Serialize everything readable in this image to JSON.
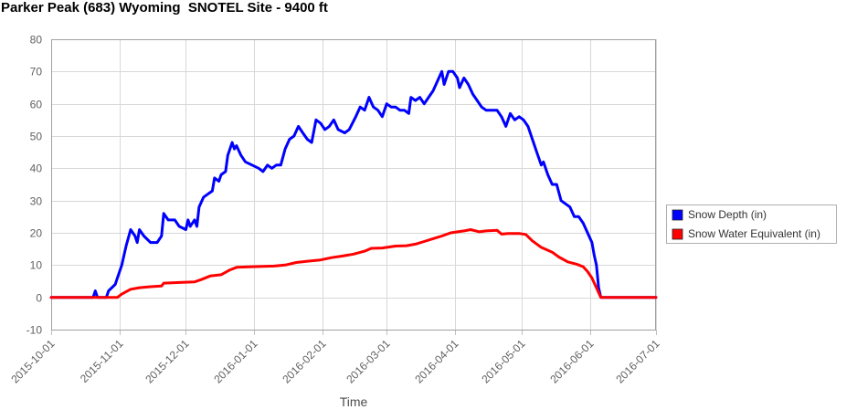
{
  "chart_data": {
    "type": "line",
    "title": "Parker Peak (683) Wyoming  SNOTEL Site - 9400 ft",
    "xlabel": "Time",
    "ylabel": "",
    "ylim": [
      -10,
      80
    ],
    "yticks": [
      -10,
      0,
      10,
      20,
      30,
      40,
      50,
      60,
      70,
      80
    ],
    "xlim": [
      "2015-10-01",
      "2016-07-01"
    ],
    "xticks": [
      "2015-10-01",
      "2015-11-01",
      "2015-12-01",
      "2016-01-01",
      "2016-02-01",
      "2016-03-01",
      "2016-04-01",
      "2016-05-01",
      "2016-06-01",
      "2016-07-01"
    ],
    "grid": true,
    "legend_position": "right",
    "series": [
      {
        "name": "Snow Depth (in)",
        "color": "#0000ff",
        "points": [
          [
            "2015-10-01",
            0
          ],
          [
            "2015-10-20",
            0
          ],
          [
            "2015-10-21",
            2
          ],
          [
            "2015-10-22",
            0
          ],
          [
            "2015-10-26",
            0
          ],
          [
            "2015-10-27",
            2
          ],
          [
            "2015-10-30",
            4
          ],
          [
            "2015-11-02",
            10
          ],
          [
            "2015-11-04",
            16
          ],
          [
            "2015-11-06",
            21
          ],
          [
            "2015-11-08",
            19
          ],
          [
            "2015-11-09",
            17
          ],
          [
            "2015-11-10",
            21
          ],
          [
            "2015-11-12",
            19
          ],
          [
            "2015-11-15",
            17
          ],
          [
            "2015-11-18",
            17
          ],
          [
            "2015-11-20",
            19
          ],
          [
            "2015-11-21",
            26
          ],
          [
            "2015-11-23",
            24
          ],
          [
            "2015-11-26",
            24
          ],
          [
            "2015-11-28",
            22
          ],
          [
            "2015-12-01",
            21
          ],
          [
            "2015-12-02",
            24
          ],
          [
            "2015-12-03",
            22
          ],
          [
            "2015-12-05",
            24
          ],
          [
            "2015-12-06",
            22
          ],
          [
            "2015-12-07",
            28
          ],
          [
            "2015-12-09",
            31
          ],
          [
            "2015-12-11",
            32
          ],
          [
            "2015-12-13",
            33
          ],
          [
            "2015-12-14",
            37
          ],
          [
            "2015-12-16",
            36
          ],
          [
            "2015-12-17",
            38
          ],
          [
            "2015-12-19",
            39
          ],
          [
            "2015-12-20",
            44
          ],
          [
            "2015-12-22",
            48
          ],
          [
            "2015-12-23",
            46
          ],
          [
            "2015-12-24",
            47
          ],
          [
            "2015-12-26",
            44
          ],
          [
            "2015-12-28",
            42
          ],
          [
            "2015-12-31",
            41
          ],
          [
            "2016-01-03",
            40
          ],
          [
            "2016-01-05",
            39
          ],
          [
            "2016-01-07",
            41
          ],
          [
            "2016-01-09",
            40
          ],
          [
            "2016-01-11",
            41
          ],
          [
            "2016-01-13",
            41
          ],
          [
            "2016-01-15",
            46
          ],
          [
            "2016-01-17",
            49
          ],
          [
            "2016-01-19",
            50
          ],
          [
            "2016-01-21",
            53
          ],
          [
            "2016-01-23",
            51
          ],
          [
            "2016-01-25",
            49
          ],
          [
            "2016-01-27",
            48
          ],
          [
            "2016-01-29",
            55
          ],
          [
            "2016-01-31",
            54
          ],
          [
            "2016-02-02",
            52
          ],
          [
            "2016-02-04",
            53
          ],
          [
            "2016-02-06",
            55
          ],
          [
            "2016-02-08",
            52
          ],
          [
            "2016-02-11",
            51
          ],
          [
            "2016-02-13",
            52
          ],
          [
            "2016-02-16",
            56
          ],
          [
            "2016-02-18",
            59
          ],
          [
            "2016-02-20",
            58
          ],
          [
            "2016-02-22",
            62
          ],
          [
            "2016-02-24",
            59
          ],
          [
            "2016-02-26",
            58
          ],
          [
            "2016-02-28",
            56
          ],
          [
            "2016-03-01",
            60
          ],
          [
            "2016-03-03",
            59
          ],
          [
            "2016-03-05",
            59
          ],
          [
            "2016-03-07",
            58
          ],
          [
            "2016-03-09",
            58
          ],
          [
            "2016-03-11",
            57
          ],
          [
            "2016-03-12",
            62
          ],
          [
            "2016-03-14",
            61
          ],
          [
            "2016-03-16",
            62
          ],
          [
            "2016-03-18",
            60
          ],
          [
            "2016-03-20",
            62
          ],
          [
            "2016-03-22",
            64
          ],
          [
            "2016-03-24",
            67
          ],
          [
            "2016-03-26",
            70
          ],
          [
            "2016-03-27",
            66
          ],
          [
            "2016-03-29",
            70
          ],
          [
            "2016-03-31",
            70
          ],
          [
            "2016-04-02",
            68
          ],
          [
            "2016-04-03",
            65
          ],
          [
            "2016-04-05",
            68
          ],
          [
            "2016-04-07",
            66
          ],
          [
            "2016-04-09",
            63
          ],
          [
            "2016-04-11",
            61
          ],
          [
            "2016-04-13",
            59
          ],
          [
            "2016-04-15",
            58
          ],
          [
            "2016-04-17",
            58
          ],
          [
            "2016-04-20",
            58
          ],
          [
            "2016-04-22",
            56
          ],
          [
            "2016-04-24",
            53
          ],
          [
            "2016-04-26",
            57
          ],
          [
            "2016-04-28",
            55
          ],
          [
            "2016-04-30",
            56
          ],
          [
            "2016-05-02",
            55
          ],
          [
            "2016-05-04",
            53
          ],
          [
            "2016-05-06",
            49
          ],
          [
            "2016-05-08",
            45
          ],
          [
            "2016-05-10",
            41
          ],
          [
            "2016-05-11",
            42
          ],
          [
            "2016-05-13",
            38
          ],
          [
            "2016-05-15",
            35
          ],
          [
            "2016-05-17",
            35
          ],
          [
            "2016-05-19",
            30
          ],
          [
            "2016-05-21",
            29
          ],
          [
            "2016-05-23",
            28
          ],
          [
            "2016-05-25",
            25
          ],
          [
            "2016-05-27",
            25
          ],
          [
            "2016-05-29",
            23
          ],
          [
            "2016-05-31",
            20
          ],
          [
            "2016-06-02",
            17
          ],
          [
            "2016-06-03",
            13
          ],
          [
            "2016-06-04",
            10
          ],
          [
            "2016-06-05",
            3
          ],
          [
            "2016-06-06",
            0
          ],
          [
            "2016-07-01",
            0
          ]
        ]
      },
      {
        "name": "Snow Water Equivalent (in)",
        "color": "#ff0000",
        "points": [
          [
            "2015-10-01",
            0
          ],
          [
            "2015-10-25",
            0
          ],
          [
            "2015-10-31",
            0
          ],
          [
            "2015-11-02",
            1
          ],
          [
            "2015-11-06",
            2.5
          ],
          [
            "2015-11-10",
            3
          ],
          [
            "2015-11-15",
            3.3
          ],
          [
            "2015-11-20",
            3.5
          ],
          [
            "2015-11-21",
            4.4
          ],
          [
            "2015-11-28",
            4.6
          ],
          [
            "2015-12-05",
            4.8
          ],
          [
            "2015-12-08",
            5.5
          ],
          [
            "2015-12-12",
            6.6
          ],
          [
            "2015-12-17",
            7
          ],
          [
            "2015-12-21",
            8.5
          ],
          [
            "2015-12-24",
            9.3
          ],
          [
            "2015-12-31",
            9.5
          ],
          [
            "2016-01-10",
            9.7
          ],
          [
            "2016-01-15",
            10
          ],
          [
            "2016-01-20",
            10.8
          ],
          [
            "2016-01-25",
            11.2
          ],
          [
            "2016-01-31",
            11.6
          ],
          [
            "2016-02-05",
            12.3
          ],
          [
            "2016-02-10",
            12.8
          ],
          [
            "2016-02-15",
            13.4
          ],
          [
            "2016-02-20",
            14.3
          ],
          [
            "2016-02-23",
            15.2
          ],
          [
            "2016-02-28",
            15.3
          ],
          [
            "2016-03-05",
            15.9
          ],
          [
            "2016-03-10",
            16
          ],
          [
            "2016-03-14",
            16.5
          ],
          [
            "2016-03-18",
            17.3
          ],
          [
            "2016-03-22",
            18.2
          ],
          [
            "2016-03-26",
            19
          ],
          [
            "2016-03-30",
            20
          ],
          [
            "2016-04-05",
            20.6
          ],
          [
            "2016-04-08",
            21
          ],
          [
            "2016-04-12",
            20.3
          ],
          [
            "2016-04-15",
            20.6
          ],
          [
            "2016-04-20",
            20.8
          ],
          [
            "2016-04-22",
            19.6
          ],
          [
            "2016-04-25",
            19.8
          ],
          [
            "2016-04-30",
            19.8
          ],
          [
            "2016-05-03",
            19.5
          ],
          [
            "2016-05-06",
            17.5
          ],
          [
            "2016-05-10",
            15.5
          ],
          [
            "2016-05-15",
            14
          ],
          [
            "2016-05-18",
            12.5
          ],
          [
            "2016-05-22",
            11
          ],
          [
            "2016-05-26",
            10.3
          ],
          [
            "2016-05-29",
            9.5
          ],
          [
            "2016-05-31",
            8
          ],
          [
            "2016-06-02",
            6
          ],
          [
            "2016-06-04",
            3
          ],
          [
            "2016-06-06",
            0
          ],
          [
            "2016-07-01",
            0
          ]
        ]
      }
    ]
  }
}
